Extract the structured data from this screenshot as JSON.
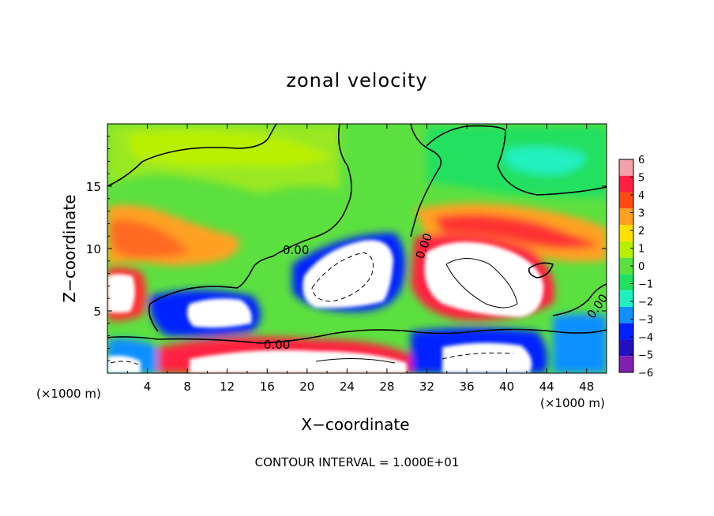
{
  "chart_data": {
    "type": "heatmap",
    "title": "zonal velocity",
    "xlabel": "X−coordinate",
    "ylabel": "Z−coordinate",
    "x_units_left": "(×1000 m)",
    "x_units_right": "(×1000 m)",
    "xlim": [
      0,
      50
    ],
    "ylim": [
      0,
      20
    ],
    "x_ticks": [
      4,
      8,
      12,
      16,
      20,
      24,
      28,
      32,
      36,
      40,
      44,
      48
    ],
    "y_ticks": [
      5,
      10,
      15
    ],
    "colorbar": {
      "levels": [
        6,
        5,
        4,
        3,
        2,
        1,
        0,
        -1,
        -2,
        -3,
        -4,
        -5,
        -6
      ],
      "labels": [
        "6",
        "5",
        "4",
        "3",
        "2",
        "1",
        "0",
        "−1",
        "−2",
        "−3",
        "−4",
        "−5",
        "−6"
      ],
      "colors": [
        "#f4a0a8",
        "#ff2040",
        "#ff4a10",
        "#ffa020",
        "#ffe000",
        "#b8f000",
        "#5ce040",
        "#20e060",
        "#20f0c0",
        "#1090ff",
        "#0020ff",
        "#2010c0",
        "#8020b0"
      ]
    },
    "contour_labels": [
      "0.00",
      "0.00",
      "0.00",
      "0.00"
    ],
    "footer": "CONTOUR INTERVAL = 1.000E+01"
  }
}
